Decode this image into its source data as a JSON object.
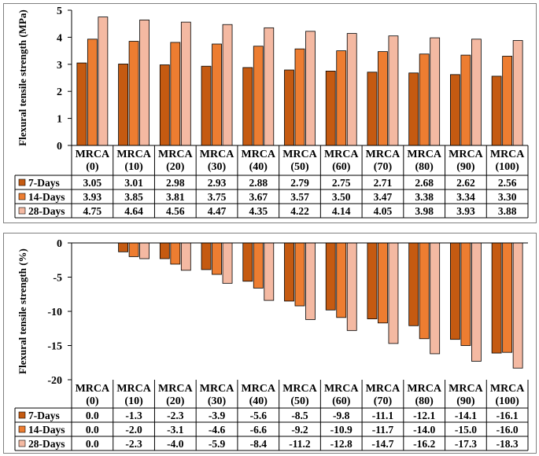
{
  "colors": {
    "7-Days": "#C55A11",
    "14-Days": "#ED7D31",
    "28-Days": "#F4B9A2",
    "bar_stroke": "#000000"
  },
  "chart_data": [
    {
      "type": "bar",
      "title": "",
      "xlabel": "",
      "ylabel": "Flexural  tensile strength (MPa)",
      "ylim": [
        0,
        5
      ],
      "yticks": [
        0,
        1,
        2,
        3,
        4,
        5
      ],
      "grid": false,
      "categories": [
        "MRCA\n(0)",
        "MRCA\n(10)",
        "MRCA\n(20)",
        "MRCA\n(30)",
        "MRCA\n(40)",
        "MRCA\n(50)",
        "MRCA\n(60)",
        "MRCA\n(70)",
        "MRCA\n(80)",
        "MRCA\n(90)",
        "MRCA\n(100)"
      ],
      "series": [
        {
          "name": "7-Days",
          "values": [
            3.05,
            3.01,
            2.98,
            2.93,
            2.88,
            2.79,
            2.75,
            2.71,
            2.68,
            2.62,
            2.56
          ],
          "labels": [
            "3.05",
            "3.01",
            "2.98",
            "2.93",
            "2.88",
            "2.79",
            "2.75",
            "2.71",
            "2.68",
            "2.62",
            "2.56"
          ]
        },
        {
          "name": "14-Days",
          "values": [
            3.93,
            3.85,
            3.81,
            3.75,
            3.67,
            3.57,
            3.5,
            3.47,
            3.38,
            3.34,
            3.3
          ],
          "labels": [
            "3.93",
            "3.85",
            "3.81",
            "3.75",
            "3.67",
            "3.57",
            "3.50",
            "3.47",
            "3.38",
            "3.34",
            "3.30"
          ]
        },
        {
          "name": "28-Days",
          "values": [
            4.75,
            4.64,
            4.56,
            4.47,
            4.35,
            4.22,
            4.14,
            4.05,
            3.98,
            3.93,
            3.88
          ],
          "labels": [
            "4.75",
            "4.64",
            "4.56",
            "4.47",
            "4.35",
            "4.22",
            "4.14",
            "4.05",
            "3.98",
            "3.93",
            "3.88"
          ]
        }
      ]
    },
    {
      "type": "bar",
      "title": "",
      "xlabel": "",
      "ylabel": "Flexural  tensile strength (%)",
      "ylim": [
        -20,
        0
      ],
      "yticks": [
        0,
        -5,
        -10,
        -15,
        -20
      ],
      "grid": false,
      "categories": [
        "MRCA\n(0)",
        "MRCA\n(10)",
        "MRCA\n(20)",
        "MRCA\n(30)",
        "MRCA\n(40)",
        "MRCA\n(50)",
        "MRCA\n(60)",
        "MRCA\n(70)",
        "MRCA\n(80)",
        "MRCA\n(90)",
        "MRCA\n(100)"
      ],
      "series": [
        {
          "name": "7-Days",
          "values": [
            0.0,
            -1.3,
            -2.3,
            -3.9,
            -5.6,
            -8.5,
            -9.8,
            -11.1,
            -12.1,
            -14.1,
            -16.1
          ],
          "labels": [
            "0.0",
            "-1.3",
            "-2.3",
            "-3.9",
            "-5.6",
            "-8.5",
            "-9.8",
            "-11.1",
            "-12.1",
            "-14.1",
            "-16.1"
          ]
        },
        {
          "name": "14-Days",
          "values": [
            0.0,
            -2.0,
            -3.1,
            -4.6,
            -6.6,
            -9.2,
            -10.9,
            -11.7,
            -14.0,
            -15.0,
            -16.0
          ],
          "labels": [
            "0.0",
            "-2.0",
            "-3.1",
            "-4.6",
            "-6.6",
            "-9.2",
            "-10.9",
            "-11.7",
            "-14.0",
            "-15.0",
            "-16.0"
          ]
        },
        {
          "name": "28-Days",
          "values": [
            0.0,
            -2.3,
            -4.0,
            -5.9,
            -8.4,
            -11.2,
            -12.8,
            -14.7,
            -16.2,
            -17.3,
            -18.3
          ],
          "labels": [
            "0.0",
            "-2.3",
            "-4.0",
            "-5.9",
            "-8.4",
            "-11.2",
            "-12.8",
            "-14.7",
            "-16.2",
            "-17.3",
            "-18.3"
          ]
        }
      ]
    }
  ]
}
